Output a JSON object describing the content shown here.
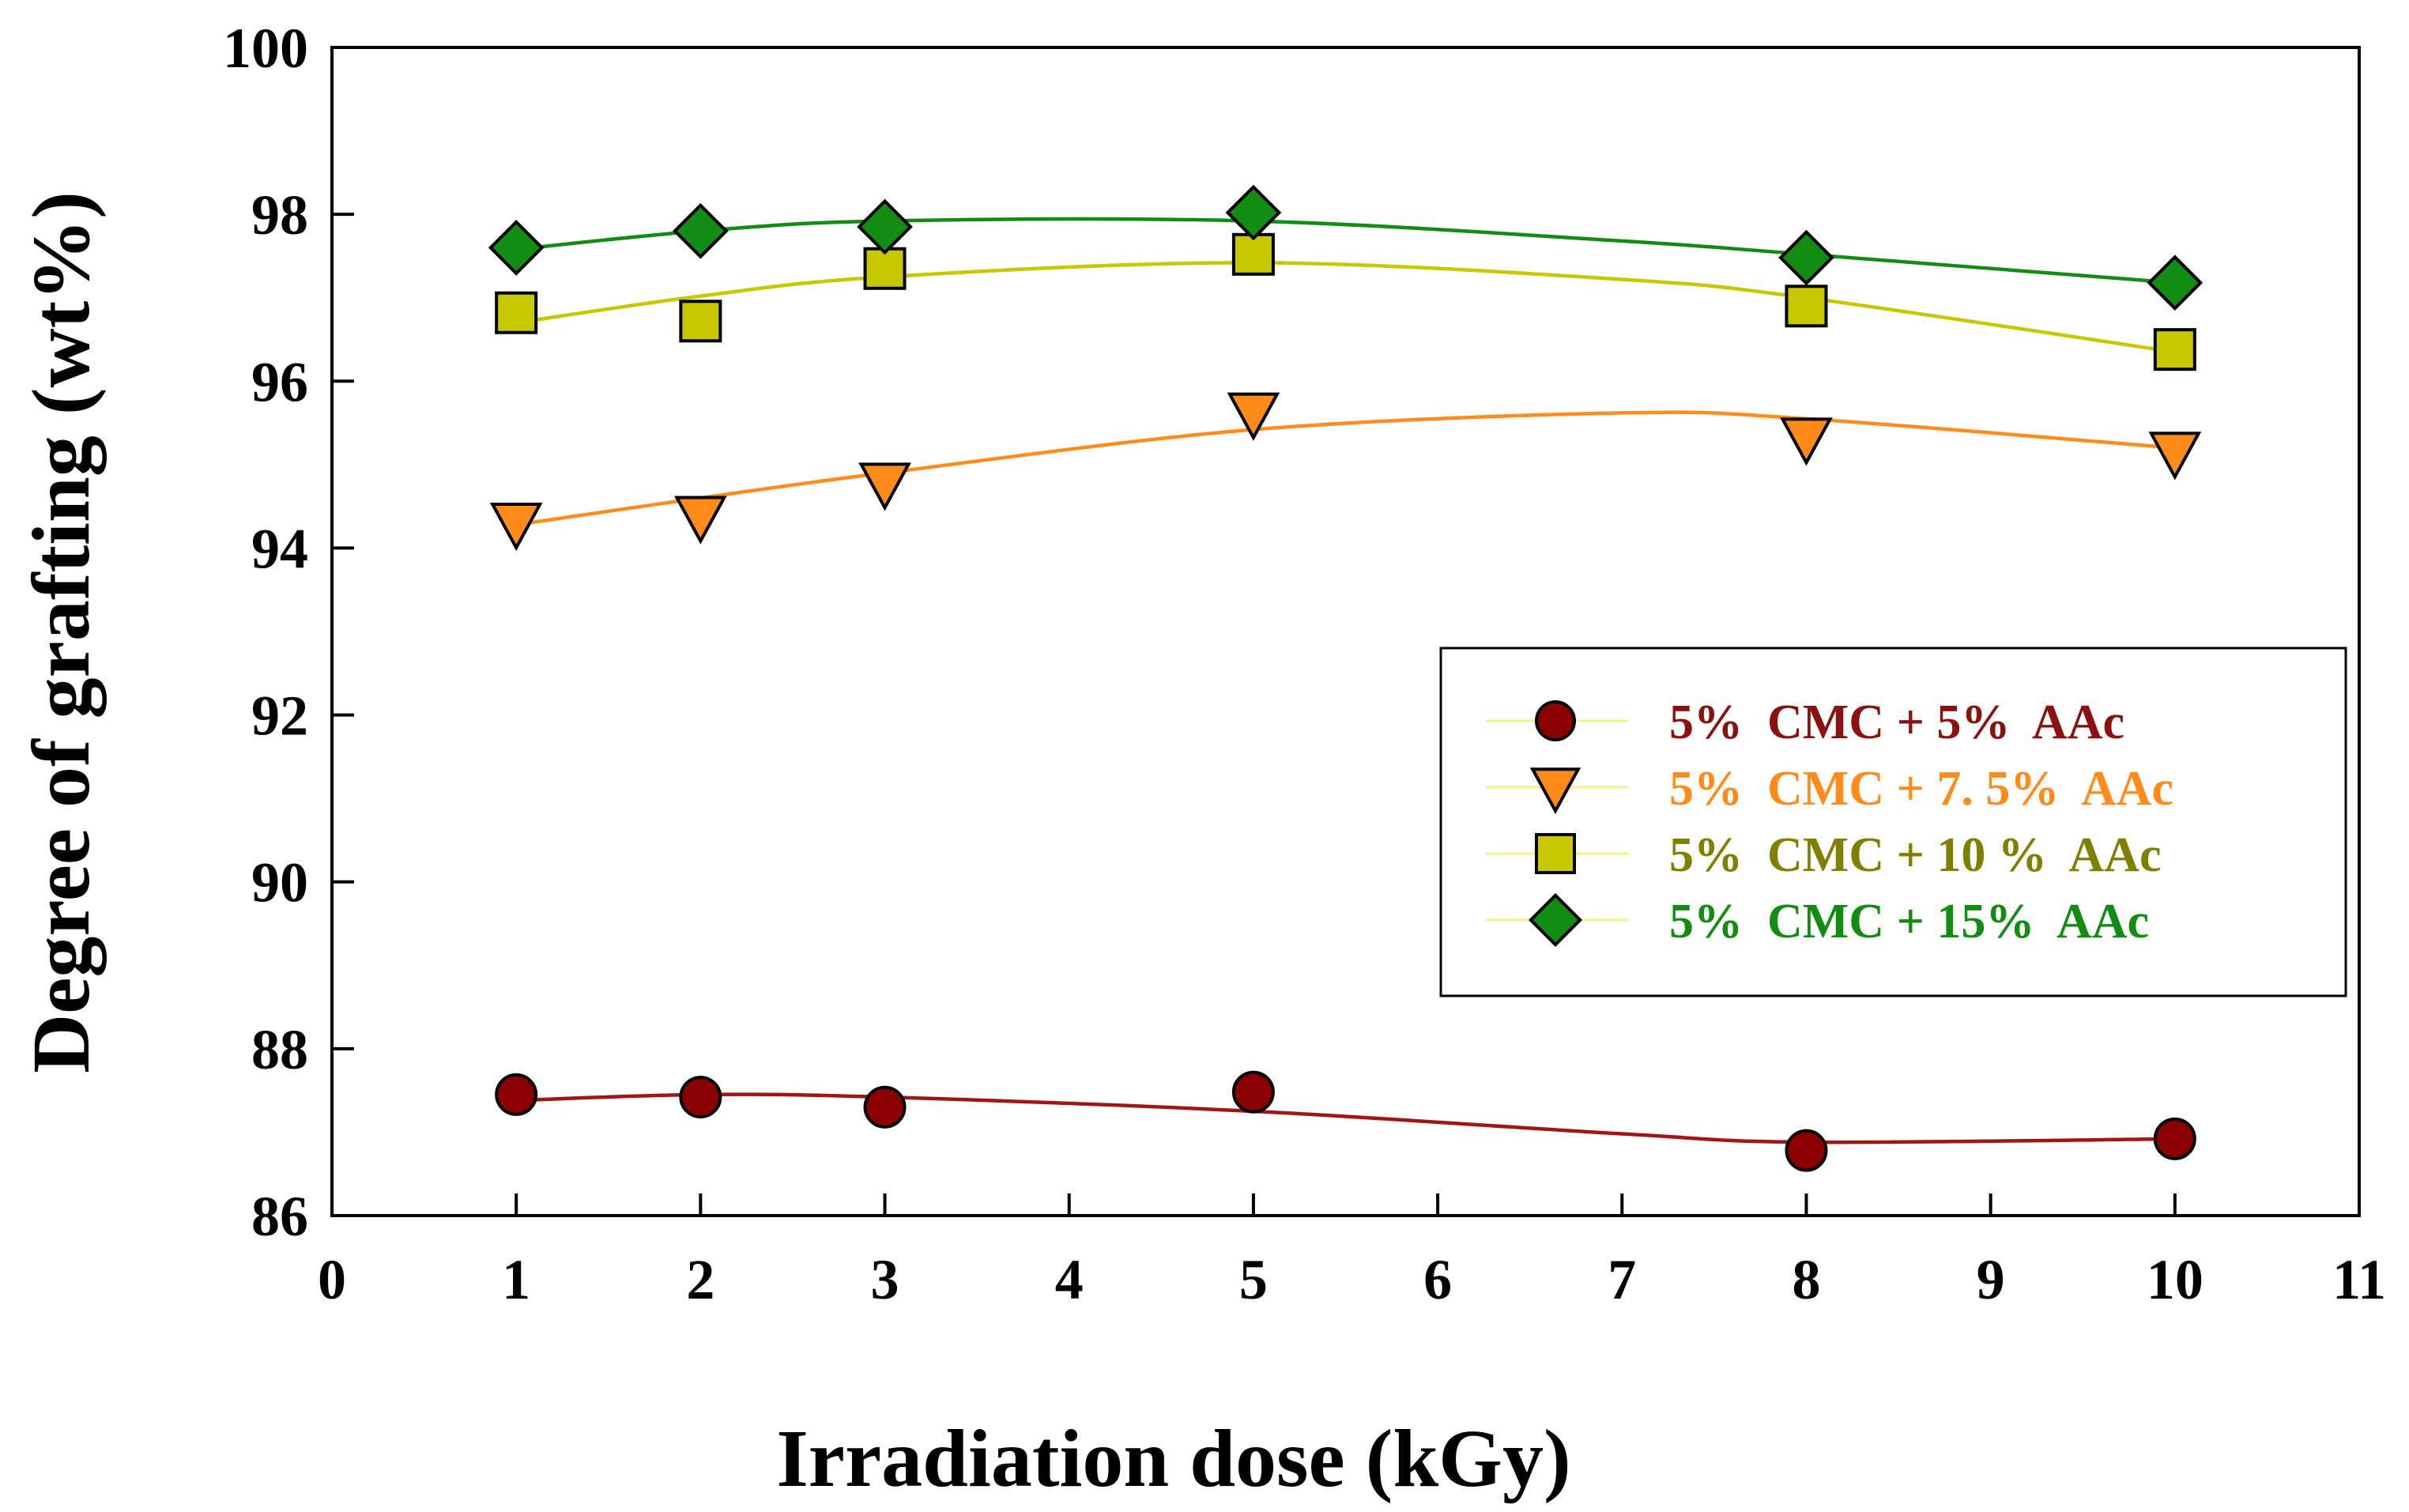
{
  "chart_data": {
    "type": "line",
    "title": "",
    "xlabel": "Irradiation dose (kGy)",
    "ylabel": "Degree of grafting (wt%)",
    "xlim": [
      0,
      11
    ],
    "ylim": [
      86,
      100
    ],
    "xticks": [
      "0",
      "1",
      "2",
      "3",
      "4",
      "5",
      "6",
      "7",
      "8",
      "9",
      "10",
      "11"
    ],
    "yticks": [
      "86",
      "88",
      "90",
      "92",
      "94",
      "96",
      "98",
      "100"
    ],
    "grid": false,
    "legend_position": "center-right",
    "x": [
      1,
      2,
      3,
      5,
      8,
      10
    ],
    "series": [
      {
        "name": "5%  CMC + 5%  AAc",
        "values": [
          87.45,
          87.42,
          87.3,
          87.48,
          86.78,
          86.92
        ],
        "fit": [
          [
            1,
            87.38
          ],
          [
            2,
            87.45
          ],
          [
            3,
            87.42
          ],
          [
            5,
            87.25
          ],
          [
            7,
            86.98
          ],
          [
            8,
            86.88
          ],
          [
            10,
            86.92
          ]
        ],
        "marker": "circle",
        "color": "#8b0000",
        "line_color": "#a31515",
        "label_color": "#8b1010"
      },
      {
        "name": "5%  CMC + 7. 5%  AAc",
        "values": [
          94.3,
          94.38,
          94.78,
          95.62,
          95.32,
          95.15
        ],
        "fit": [
          [
            1,
            94.28
          ],
          [
            2,
            94.6
          ],
          [
            3,
            94.9
          ],
          [
            5,
            95.42
          ],
          [
            7,
            95.62
          ],
          [
            8,
            95.55
          ],
          [
            10,
            95.2
          ]
        ],
        "marker": "triangle-down",
        "color": "#ff8c1a",
        "line_color": "#ff8c1a",
        "label_color": "#ff8c1a"
      },
      {
        "name": "5%  CMC + 10 %  AAc",
        "values": [
          96.82,
          96.72,
          97.35,
          97.52,
          96.9,
          96.38
        ],
        "fit": [
          [
            1,
            96.7
          ],
          [
            2,
            97.02
          ],
          [
            3,
            97.25
          ],
          [
            5,
            97.42
          ],
          [
            7,
            97.22
          ],
          [
            8,
            97.0
          ],
          [
            10,
            96.35
          ]
        ],
        "marker": "square",
        "color": "#c8c800",
        "line_color": "#c8c800",
        "label_color": "#808000"
      },
      {
        "name": "5%  CMC + 15%  AAc",
        "values": [
          97.6,
          97.8,
          97.85,
          98.02,
          97.48,
          97.18
        ],
        "fit": [
          [
            1,
            97.58
          ],
          [
            2,
            97.8
          ],
          [
            3,
            97.92
          ],
          [
            5,
            97.92
          ],
          [
            7,
            97.68
          ],
          [
            8,
            97.52
          ],
          [
            10,
            97.18
          ]
        ],
        "marker": "diamond",
        "color": "#128c12",
        "line_color": "#128c12",
        "label_color": "#128c12"
      }
    ]
  }
}
